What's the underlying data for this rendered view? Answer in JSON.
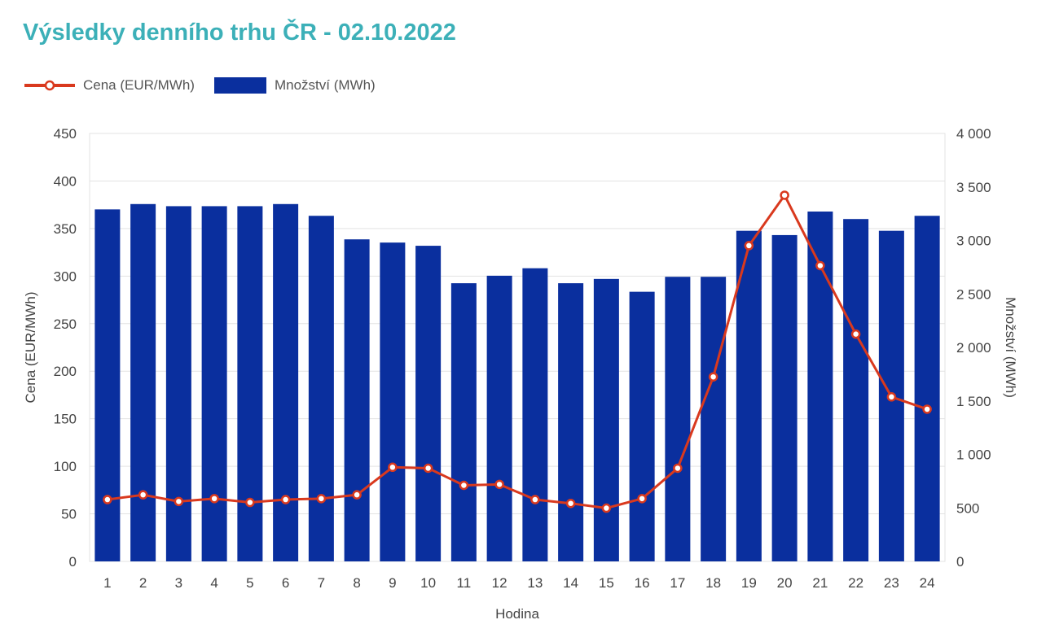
{
  "title": "Výsledky denního trhu ČR - 02.10.2022",
  "legend": {
    "price_label": "Cena (EUR/MWh)",
    "volume_label": "Množství (MWh)"
  },
  "colors": {
    "title": "#3cb0b8",
    "bars": "#0a2f9e",
    "line": "#d9391e",
    "grid": "#e3e3e3",
    "text": "#444444"
  },
  "chart_data": {
    "type": "bar",
    "title": "Výsledky denního trhu ČR - 02.10.2022",
    "xlabel": "Hodina",
    "ylabel": "Cena (EUR/MWh)",
    "y2label": "Množství (MWh)",
    "categories": [
      "1",
      "2",
      "3",
      "4",
      "5",
      "6",
      "7",
      "8",
      "9",
      "10",
      "11",
      "12",
      "13",
      "14",
      "15",
      "16",
      "17",
      "18",
      "19",
      "20",
      "21",
      "22",
      "23",
      "24"
    ],
    "ylim": [
      0,
      450
    ],
    "y2lim": [
      0,
      4000
    ],
    "y_ticks": [
      "0",
      "50",
      "100",
      "150",
      "200",
      "250",
      "300",
      "350",
      "400",
      "450"
    ],
    "y2_ticks": [
      "0",
      "500",
      "1 000",
      "1 500",
      "2 000",
      "2 500",
      "3 000",
      "3 500",
      "4 000"
    ],
    "grid": true,
    "legend_position": "top-left",
    "series": [
      {
        "name": "Množství (MWh)",
        "type": "bar",
        "axis": "right",
        "values": [
          3290,
          3340,
          3320,
          3320,
          3320,
          3340,
          3230,
          3010,
          2980,
          2950,
          2600,
          2670,
          2740,
          2600,
          2640,
          2520,
          2660,
          2660,
          3090,
          3050,
          3270,
          3200,
          3090,
          3230
        ]
      },
      {
        "name": "Cena (EUR/MWh)",
        "type": "line",
        "axis": "left",
        "values": [
          65,
          70,
          63,
          66,
          62,
          65,
          66,
          70,
          99,
          98,
          80,
          81,
          65,
          61,
          56,
          66,
          98,
          194,
          332,
          385,
          311,
          239,
          173,
          160
        ]
      }
    ]
  }
}
